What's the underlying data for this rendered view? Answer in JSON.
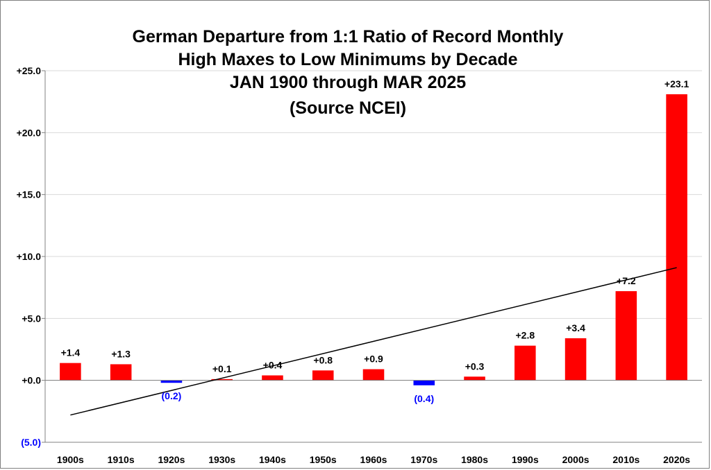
{
  "chart_data": {
    "type": "bar",
    "title_lines": [
      "German Departure from 1:1 Ratio of Record Monthly",
      "High Maxes to Low Minimums by Decade",
      "JAN 1900 through MAR 2025",
      "(Source NCEI)"
    ],
    "categories": [
      "1900s",
      "1910s",
      "1920s",
      "1930s",
      "1940s",
      "1950s",
      "1960s",
      "1970s",
      "1980s",
      "1990s",
      "2000s",
      "2010s",
      "2020s"
    ],
    "values": [
      1.4,
      1.3,
      -0.2,
      0.1,
      0.4,
      0.8,
      0.9,
      -0.4,
      0.3,
      2.8,
      3.4,
      7.2,
      23.1
    ],
    "data_labels": [
      "+1.4",
      "+1.3",
      "(0.2)",
      "+0.1",
      "+0.4",
      "+0.8",
      "+0.9",
      "(0.4)",
      "+0.3",
      "+2.8",
      "+3.4",
      "+7.2",
      "+23.1"
    ],
    "y_ticks": [
      -5,
      0,
      5,
      10,
      15,
      20,
      25
    ],
    "y_tick_labels": [
      "(5.0)",
      "+0.0",
      "+5.0",
      "+10.0",
      "+15.0",
      "+20.0",
      "+25.0"
    ],
    "ylim": [
      -5,
      25
    ],
    "xlabel": "",
    "ylabel": "",
    "grid": "horizontal",
    "trendline": {
      "type": "linear",
      "start_value": -2.8,
      "end_value": 9.1
    },
    "colors": {
      "positive": "#ff0000",
      "negative": "#0000ff",
      "negative_label": "#0000ff",
      "grid": "#d9d9d9",
      "axis": "#808080",
      "trendline": "#000000"
    }
  }
}
